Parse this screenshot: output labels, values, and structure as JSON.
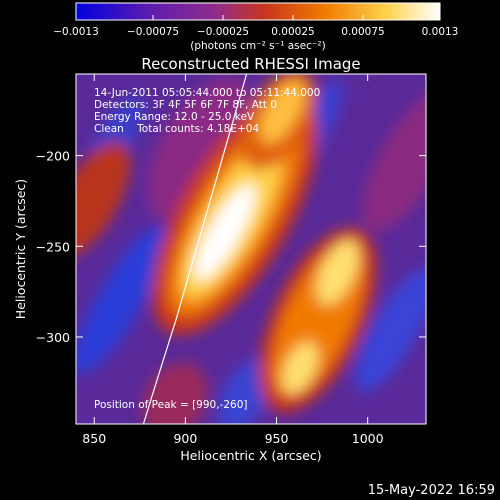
{
  "colorbar": {
    "ticks": [
      "-0.0013",
      "-0.00075",
      "-0.00025",
      "0.00025",
      "0.00075",
      "0.0013"
    ],
    "unit_label": "(photons cm⁻² s⁻¹ asec⁻²)",
    "colors": [
      "#0000e0",
      "#5c1cb0",
      "#8f2c8c",
      "#c8361c",
      "#f07a00",
      "#ffd24a",
      "#ffffff"
    ]
  },
  "info_lines": [
    "14-Jun-2011 05:05:44.000 to 05:11:44.000",
    "Detectors: 3F 4F 5F 6F 7F 8F, Att 0",
    "Energy Range: 12.0 - 25.0 keV",
    "Clean    Total counts: 4.18E+04"
  ],
  "peak_label": "Position of Peak = [990,-260]",
  "footer_date": "15-May-2022 16:59",
  "chart_data": {
    "type": "heatmap",
    "title": "Reconstructed RHESSI Image",
    "xlabel": "Heliocentric X (arcsec)",
    "ylabel": "Heliocentric Y (arcsec)",
    "xlim": [
      840,
      1032
    ],
    "ylim": [
      -348,
      -155
    ],
    "xticks": [
      850,
      900,
      950,
      1000
    ],
    "yticks": [
      -200,
      -250,
      -300
    ],
    "peak": {
      "x": 990,
      "y": -260
    },
    "value_range": [
      -0.0013,
      0.0013
    ],
    "limb_curve": {
      "x": [
        877,
        885,
        895,
        905,
        915,
        925,
        935
      ],
      "y": [
        -348,
        -322,
        -290,
        -255,
        -220,
        -185,
        -150
      ]
    },
    "sources": [
      {
        "x": 917,
        "y": -225,
        "value": 0.0013
      },
      {
        "x": 950,
        "y": -185,
        "value": 0.0008
      },
      {
        "x": 990,
        "y": -270,
        "value": 0.0012
      },
      {
        "x": 960,
        "y": -320,
        "value": 0.001
      },
      {
        "x": 860,
        "y": -200,
        "value": 0.0007
      },
      {
        "x": 1000,
        "y": -170,
        "value": 0.0004
      },
      {
        "x": 920,
        "y": -330,
        "value": 0.0004
      }
    ]
  }
}
